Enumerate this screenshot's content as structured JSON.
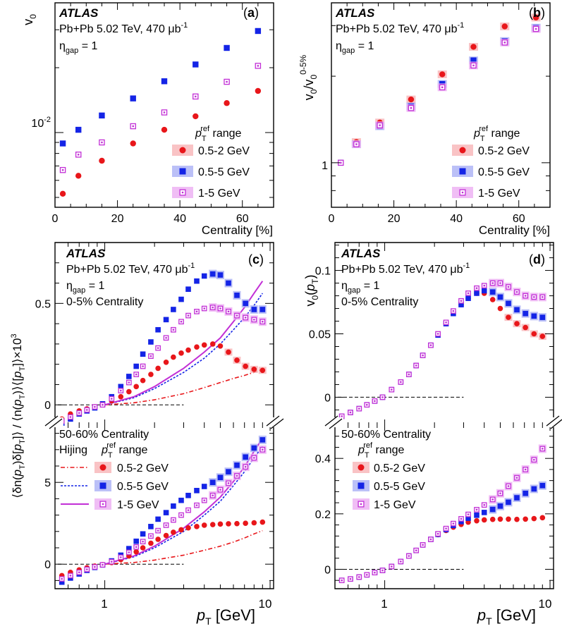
{
  "colors": {
    "s1": "#e8161a",
    "s2": "#1424e6",
    "s3": "#c22fd6",
    "s1_band": "#f7b4b6",
    "s2_band": "#aab0f5",
    "s3_band": "#ecaef3"
  },
  "common": {
    "experiment": "ATLAS",
    "system": "Pb+Pb 5.02 TeV, 470 μb",
    "system_sup": "-1",
    "eta_prefix": "η",
    "eta_sub": "gap",
    "eta_value": " = 1",
    "centrality_central": "0-5% Centrality",
    "centrality_peripheral": "50-60% Centrality",
    "legend_title_p": "p",
    "legend_title_sub": "T",
    "legend_title_sup": "ref",
    "legend_title_suffix": " range",
    "hijing_label": "Hijing",
    "series_labels": [
      "0.5-2 GeV",
      "0.5-5 GeV",
      "1-5 GeV"
    ]
  },
  "chart_data": [
    {
      "panel": "a",
      "type": "scatter",
      "panel_letter": "a",
      "ylabel": "v0",
      "xlabel": "Centrality [%]",
      "xlim": [
        0,
        70
      ],
      "ylim_log": [
        0.0045,
        0.04
      ],
      "x_ticks": [
        0,
        20,
        40,
        60
      ],
      "y_tick_label": "10",
      "y_tick_label_sup": "-2",
      "x": [
        2.5,
        7.5,
        15,
        25,
        35,
        45,
        55,
        65
      ],
      "series": [
        {
          "name": "0.5-2 GeV",
          "values": [
            0.0052,
            0.0063,
            0.0074,
            0.0089,
            0.0103,
            0.0119,
            0.0137,
            0.0156
          ]
        },
        {
          "name": "0.5-5 GeV",
          "values": [
            0.0089,
            0.0103,
            0.012,
            0.0144,
            0.0173,
            0.0207,
            0.0247,
            0.0296
          ]
        },
        {
          "name": "1-5 GeV",
          "values": [
            0.0067,
            0.0079,
            0.009,
            0.0107,
            0.0124,
            0.0147,
            0.0172,
            0.0204
          ]
        }
      ]
    },
    {
      "panel": "b",
      "type": "scatter",
      "panel_letter": "b",
      "ylabel": "v0/v0 0-5%",
      "xlabel": "Centrality [%]",
      "xlim": [
        0,
        70
      ],
      "ylim_log": [
        0.7,
        3.6
      ],
      "x_ticks": [
        0,
        20,
        40,
        60
      ],
      "y_tick_label": "1",
      "x": [
        3,
        8,
        15.5,
        25.5,
        35.5,
        45.5,
        55.5,
        65.5
      ],
      "series": [
        {
          "name": "0.5-2 GeV",
          "values": [
            1.0,
            1.18,
            1.38,
            1.66,
            2.03,
            2.53,
            2.98,
            3.2
          ]
        },
        {
          "name": "0.5-5 GeV",
          "values": [
            1.0,
            1.16,
            1.34,
            1.57,
            1.88,
            2.27,
            2.65,
            2.95
          ]
        },
        {
          "name": "1-5 GeV",
          "values": [
            1.0,
            1.16,
            1.35,
            1.55,
            1.83,
            2.18,
            2.62,
            2.92
          ]
        }
      ]
    },
    {
      "panel": "c",
      "type": "scatter",
      "panel_letter": "c",
      "ylabel": "⟨δn(pT)δ[pT]⟩ / ⟨n(pT)⟩⟨[pT]⟩×10³",
      "xlabel_p": "p",
      "xlabel_sub": "T",
      "xlabel_unit": " [GeV]",
      "xlim_log": [
        0.5,
        10.5
      ],
      "x_tick_labels": [
        "1",
        "10"
      ],
      "upper": {
        "label": "0-5% Centrality",
        "ylim": [
          -0.1,
          0.8
        ],
        "y_ticks": [
          0,
          0.5
        ],
        "x": [
          0.55,
          0.62,
          0.7,
          0.78,
          0.87,
          0.97,
          1.1,
          1.25,
          1.4,
          1.55,
          1.7,
          1.9,
          2.1,
          2.35,
          2.6,
          2.9,
          3.2,
          3.6,
          4.0,
          4.5,
          5.0,
          5.6,
          6.3,
          7.1,
          8.0,
          9.0
        ],
        "series": [
          {
            "name": "0.5-2 GeV",
            "values": [
              -0.07,
              -0.045,
              -0.03,
              -0.02,
              -0.01,
              0.0,
              0.02,
              0.04,
              0.065,
              0.09,
              0.12,
              0.15,
              0.18,
              0.21,
              0.235,
              0.255,
              0.27,
              0.285,
              0.295,
              0.3,
              0.29,
              0.26,
              0.22,
              0.19,
              0.175,
              0.17
            ]
          },
          {
            "name": "0.5-5 GeV",
            "values": [
              -0.09,
              -0.07,
              -0.045,
              -0.03,
              -0.015,
              0.005,
              0.04,
              0.09,
              0.14,
              0.19,
              0.25,
              0.31,
              0.37,
              0.42,
              0.47,
              0.52,
              0.57,
              0.61,
              0.635,
              0.645,
              0.64,
              0.6,
              0.54,
              0.5,
              0.47,
              0.47
            ]
          },
          {
            "name": "1-5 GeV",
            "values": [
              -0.08,
              -0.06,
              -0.04,
              -0.025,
              -0.01,
              0.0,
              0.03,
              0.07,
              0.11,
              0.15,
              0.19,
              0.24,
              0.28,
              0.33,
              0.37,
              0.41,
              0.44,
              0.46,
              0.475,
              0.48,
              0.475,
              0.46,
              0.44,
              0.43,
              0.42,
              0.41
            ]
          }
        ],
        "hijing": [
          {
            "name": "0.5-2 GeV",
            "x": [
              1.0,
              1.5,
              2.0,
              3.0,
              4.0,
              5.0,
              6.0,
              7.0,
              8.0,
              9.0
            ],
            "values": [
              0.0,
              0.01,
              0.025,
              0.055,
              0.085,
              0.11,
              0.13,
              0.145,
              0.16,
              0.175
            ]
          },
          {
            "name": "0.5-5 GeV",
            "x": [
              1.0,
              1.5,
              2.0,
              3.0,
              4.0,
              5.0,
              6.0,
              7.0,
              8.0,
              9.0
            ],
            "values": [
              0.0,
              0.035,
              0.08,
              0.16,
              0.23,
              0.3,
              0.37,
              0.43,
              0.49,
              0.55
            ]
          },
          {
            "name": "1-5 GeV",
            "x": [
              1.0,
              1.5,
              2.0,
              3.0,
              4.0,
              5.0,
              6.0,
              7.0,
              8.0,
              9.0
            ],
            "values": [
              0.0,
              0.04,
              0.09,
              0.18,
              0.26,
              0.33,
              0.41,
              0.48,
              0.55,
              0.61
            ]
          }
        ]
      },
      "lower": {
        "label": "50-60% Centrality",
        "ylim": [
          -1.5,
          8.5
        ],
        "y_ticks": [
          0,
          5
        ],
        "x": [
          0.55,
          0.62,
          0.7,
          0.78,
          0.87,
          0.97,
          1.1,
          1.25,
          1.4,
          1.55,
          1.7,
          1.9,
          2.1,
          2.35,
          2.6,
          2.9,
          3.2,
          3.6,
          4.0,
          4.5,
          5.0,
          5.6,
          6.3,
          7.1,
          8.0,
          9.0
        ],
        "series": [
          {
            "name": "0.5-2 GeV",
            "values": [
              -0.7,
              -0.5,
              -0.35,
              -0.22,
              -0.12,
              -0.03,
              0.1,
              0.28,
              0.5,
              0.75,
              1.0,
              1.28,
              1.52,
              1.75,
              1.95,
              2.1,
              2.22,
              2.3,
              2.38,
              2.42,
              2.45,
              2.47,
              2.48,
              2.5,
              2.53,
              2.57
            ]
          },
          {
            "name": "0.5-5 GeV",
            "values": [
              -1.1,
              -0.85,
              -0.6,
              -0.38,
              -0.2,
              -0.05,
              0.2,
              0.55,
              0.95,
              1.4,
              1.85,
              2.3,
              2.75,
              3.15,
              3.55,
              3.9,
              4.2,
              4.5,
              4.75,
              5.0,
              5.3,
              5.65,
              6.05,
              6.55,
              7.1,
              7.6
            ]
          },
          {
            "name": "1-5 GeV",
            "values": [
              -0.9,
              -0.7,
              -0.5,
              -0.32,
              -0.17,
              -0.04,
              0.15,
              0.42,
              0.72,
              1.05,
              1.38,
              1.72,
              2.05,
              2.38,
              2.7,
              3.0,
              3.3,
              3.6,
              3.9,
              4.2,
              4.55,
              4.95,
              5.4,
              5.95,
              6.5,
              7.0
            ]
          }
        ],
        "hijing": [
          {
            "name": "0.5-2 GeV",
            "x": [
              1.0,
              1.5,
              2.0,
              3.0,
              4.0,
              5.0,
              6.0,
              7.0,
              8.0,
              9.0
            ],
            "values": [
              0.0,
              0.1,
              0.25,
              0.55,
              0.85,
              1.1,
              1.35,
              1.6,
              1.85,
              2.05
            ]
          },
          {
            "name": "0.5-5 GeV",
            "x": [
              1.0,
              1.5,
              2.0,
              3.0,
              4.0,
              5.0,
              6.0,
              7.0,
              8.0,
              9.0
            ],
            "values": [
              0.0,
              0.45,
              1.0,
              2.0,
              3.0,
              3.85,
              4.8,
              5.65,
              6.5,
              7.2
            ]
          },
          {
            "name": "1-5 GeV",
            "x": [
              1.0,
              1.5,
              2.0,
              3.0,
              4.0,
              5.0,
              6.0,
              7.0,
              8.0,
              9.0
            ],
            "values": [
              0.0,
              0.5,
              1.1,
              2.2,
              3.2,
              4.1,
              5.05,
              5.95,
              6.9,
              7.7
            ]
          }
        ]
      }
    },
    {
      "panel": "d",
      "type": "scatter",
      "panel_letter": "d",
      "ylabel": "v0(pT)",
      "xlabel_p": "p",
      "xlabel_sub": "T",
      "xlabel_unit": " [GeV]",
      "xlim_log": [
        0.5,
        10.5
      ],
      "x_tick_labels": [
        "1",
        "10"
      ],
      "upper": {
        "label": "0-5% Centrality",
        "ylim": [
          -0.022,
          0.122
        ],
        "y_ticks": [
          0,
          0.05,
          0.1
        ],
        "y_tick_labels": [
          "0",
          "0.05",
          "0.1"
        ],
        "x": [
          0.55,
          0.62,
          0.7,
          0.78,
          0.87,
          0.97,
          1.1,
          1.25,
          1.4,
          1.55,
          1.7,
          1.9,
          2.1,
          2.35,
          2.6,
          2.9,
          3.2,
          3.6,
          4.0,
          4.5,
          5.0,
          5.6,
          6.3,
          7.1,
          8.0,
          9.0
        ],
        "series": [
          {
            "name": "0.5-2 GeV",
            "values": [
              -0.015,
              -0.012,
              -0.009,
              -0.006,
              -0.003,
              0.0,
              0.006,
              0.012,
              0.018,
              0.025,
              0.033,
              0.041,
              0.049,
              0.058,
              0.066,
              0.073,
              0.078,
              0.082,
              0.082,
              0.077,
              0.07,
              0.063,
              0.058,
              0.055,
              0.05,
              0.048
            ]
          },
          {
            "name": "0.5-5 GeV",
            "values": [
              -0.015,
              -0.012,
              -0.009,
              -0.006,
              -0.003,
              0.0,
              0.006,
              0.012,
              0.018,
              0.025,
              0.033,
              0.041,
              0.049,
              0.058,
              0.066,
              0.073,
              0.078,
              0.082,
              0.084,
              0.083,
              0.079,
              0.074,
              0.069,
              0.066,
              0.064,
              0.063
            ]
          },
          {
            "name": "1-5 GeV",
            "values": [
              -0.015,
              -0.012,
              -0.009,
              -0.006,
              -0.003,
              0.0,
              0.006,
              0.012,
              0.018,
              0.025,
              0.033,
              0.041,
              0.05,
              0.059,
              0.068,
              0.076,
              0.082,
              0.086,
              0.088,
              0.09,
              0.09,
              0.087,
              0.083,
              0.08,
              0.079,
              0.079
            ]
          }
        ]
      },
      "lower": {
        "label": "50-60% Centrality",
        "ylim": [
          -0.07,
          0.52
        ],
        "y_ticks": [
          0,
          0.2,
          0.4
        ],
        "y_tick_labels": [
          "0",
          "0.2",
          "0.4"
        ],
        "x": [
          0.55,
          0.62,
          0.7,
          0.78,
          0.87,
          0.97,
          1.1,
          1.25,
          1.4,
          1.55,
          1.7,
          1.9,
          2.1,
          2.35,
          2.6,
          2.9,
          3.2,
          3.6,
          4.0,
          4.5,
          5.0,
          5.6,
          6.3,
          7.1,
          8.0,
          9.0
        ],
        "series": [
          {
            "name": "0.5-2 GeV",
            "values": [
              -0.04,
              -0.035,
              -0.028,
              -0.02,
              -0.012,
              -0.004,
              0.01,
              0.028,
              0.048,
              0.068,
              0.088,
              0.108,
              0.125,
              0.14,
              0.152,
              0.162,
              0.17,
              0.175,
              0.178,
              0.18,
              0.181,
              0.181,
              0.18,
              0.181,
              0.183,
              0.186
            ]
          },
          {
            "name": "0.5-5 GeV",
            "values": [
              -0.04,
              -0.035,
              -0.028,
              -0.02,
              -0.012,
              -0.004,
              0.01,
              0.028,
              0.048,
              0.068,
              0.088,
              0.108,
              0.126,
              0.143,
              0.158,
              0.172,
              0.184,
              0.195,
              0.205,
              0.216,
              0.228,
              0.242,
              0.258,
              0.274,
              0.29,
              0.302
            ]
          },
          {
            "name": "1-5 GeV",
            "values": [
              -0.04,
              -0.035,
              -0.028,
              -0.02,
              -0.012,
              -0.004,
              0.01,
              0.028,
              0.048,
              0.068,
              0.088,
              0.108,
              0.128,
              0.147,
              0.165,
              0.182,
              0.198,
              0.215,
              0.232,
              0.252,
              0.274,
              0.3,
              0.33,
              0.36,
              0.395,
              0.435
            ]
          }
        ]
      }
    }
  ]
}
